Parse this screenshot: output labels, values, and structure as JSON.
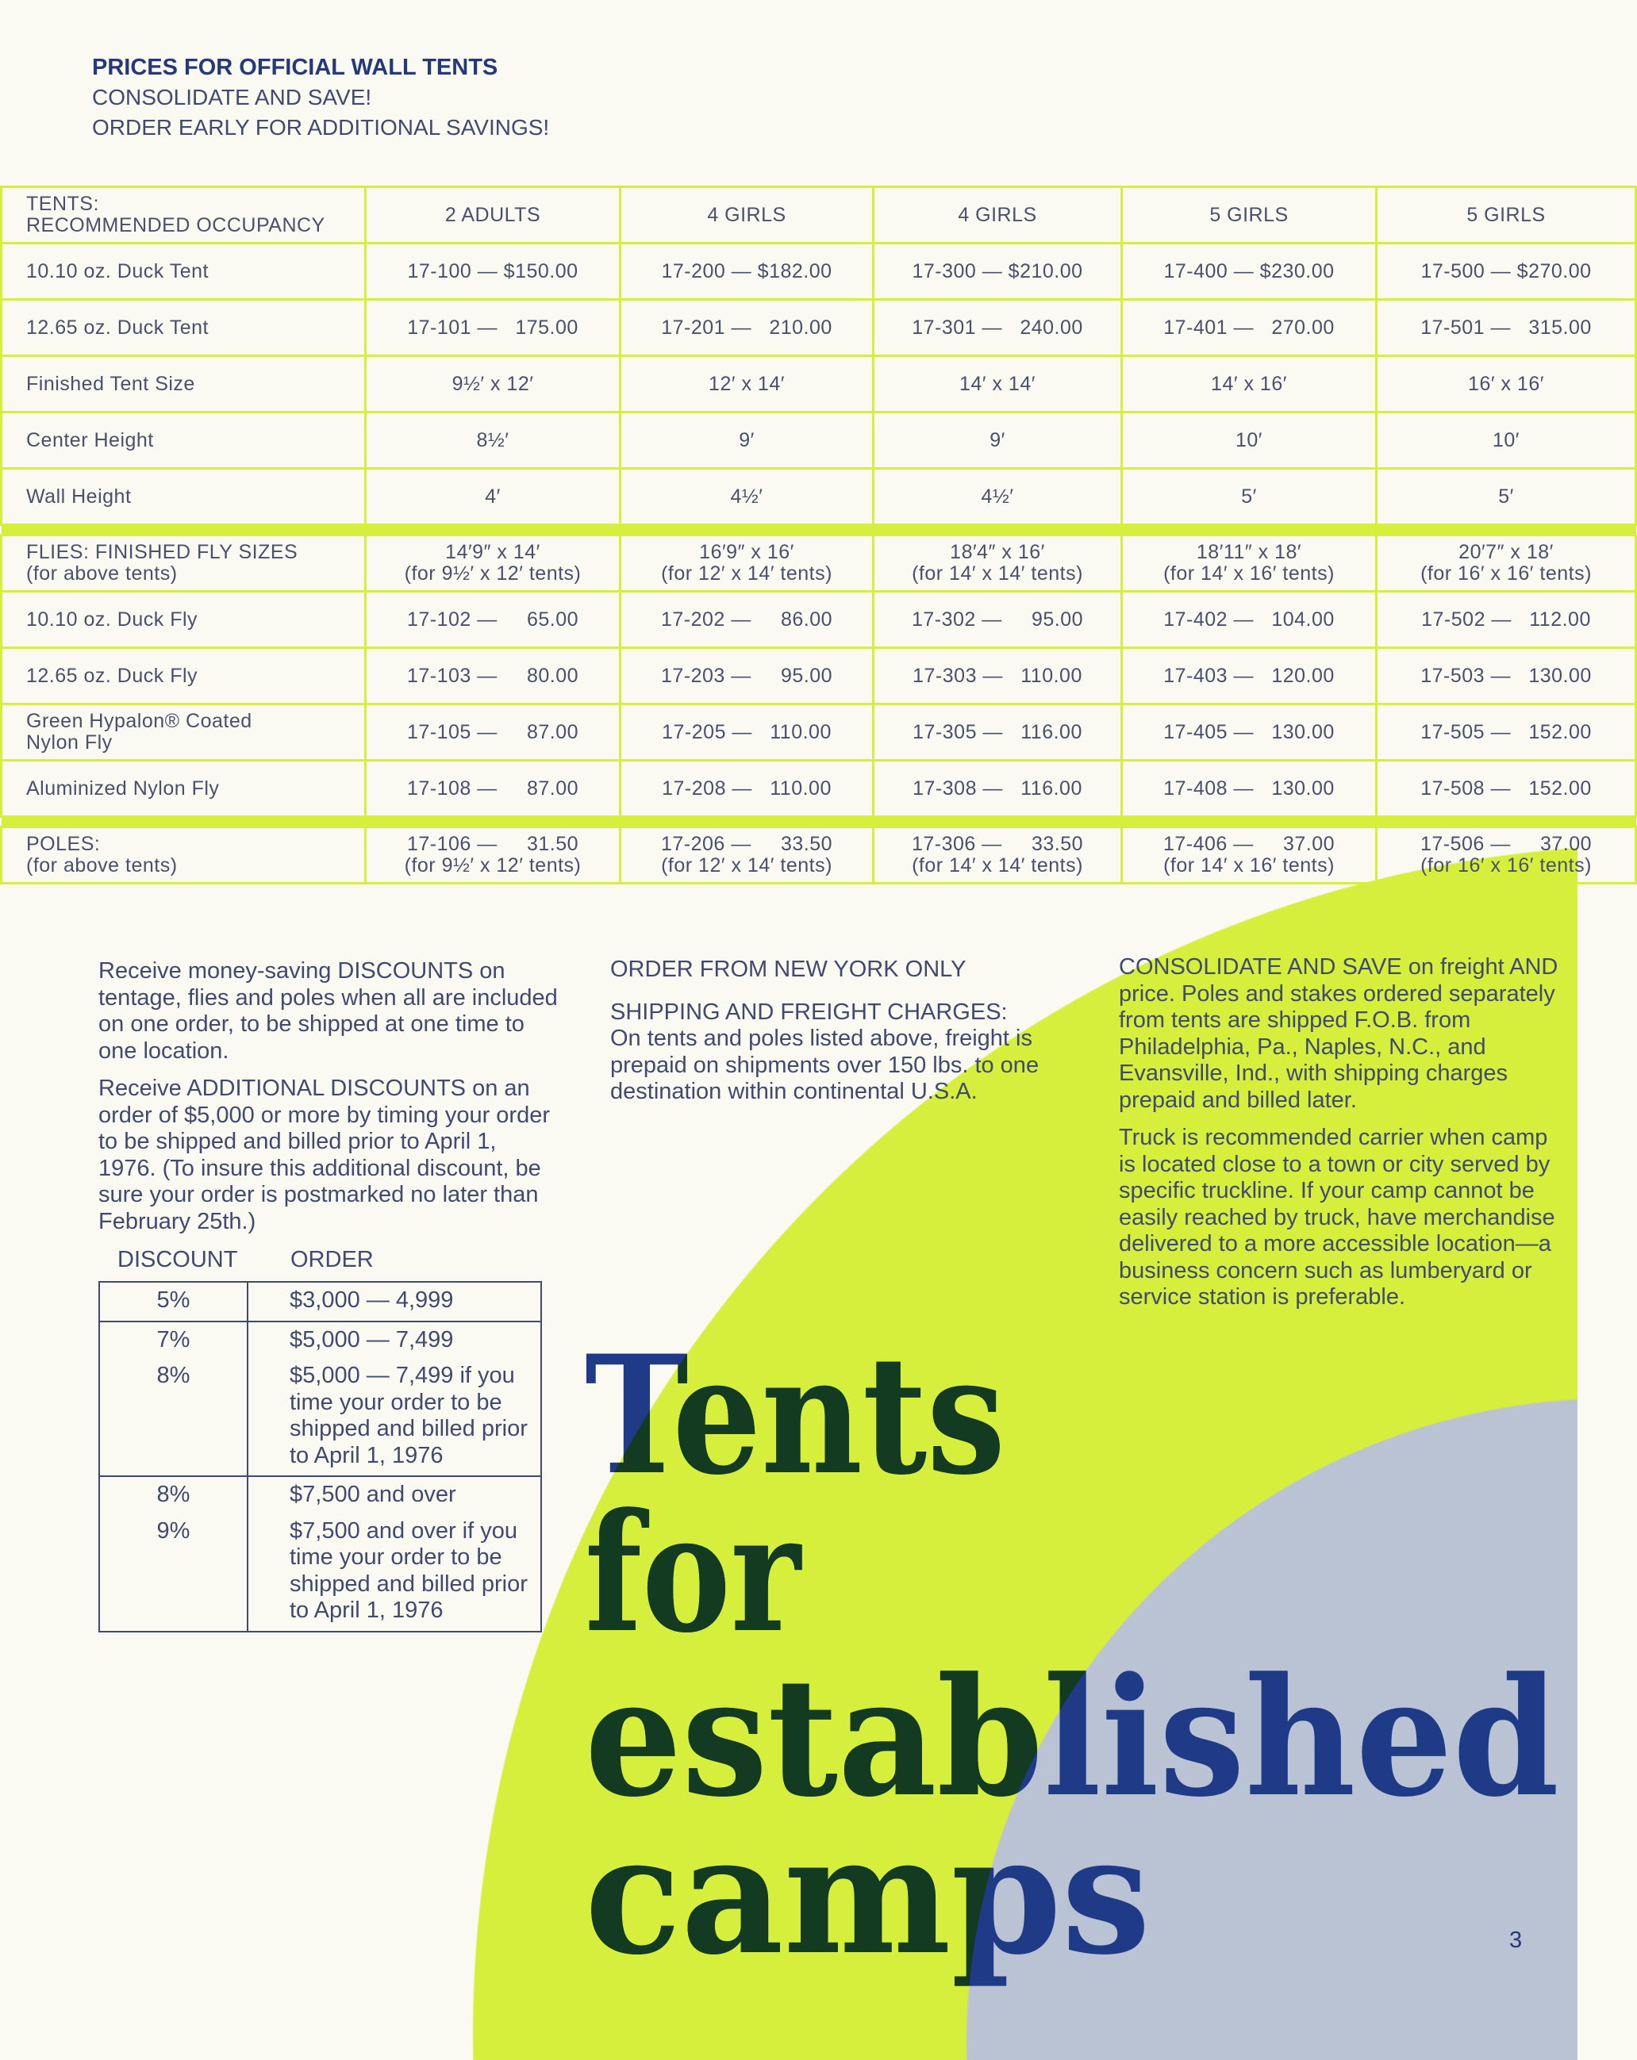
{
  "colors": {
    "lime": "#d6ee3c",
    "gray_blue": "#b9c3d3",
    "navy": "#1f3a86",
    "dark_green": "#123b22",
    "text": "#3f4a6e"
  },
  "header": {
    "title": "PRICES FOR OFFICIAL WALL TENTS",
    "line1": "CONSOLIDATE AND SAVE!",
    "line2": "ORDER EARLY FOR ADDITIONAL  SAVINGS!"
  },
  "tents_table": {
    "header": {
      "label": "TENTS:\nRECOMMENDED OCCUPANCY",
      "cols": [
        "2 ADULTS",
        "4 GIRLS",
        "4 GIRLS",
        "5 GIRLS",
        "5 GIRLS"
      ]
    },
    "rows": [
      {
        "label": "10.10 oz. Duck Tent",
        "cells": [
          "17-100 — $150.00",
          "17-200 — $182.00",
          "17-300 — $210.00",
          "17-400 — $230.00",
          "17-500 — $270.00"
        ]
      },
      {
        "label": "12.65 oz. Duck Tent",
        "cells": [
          "17-101 —   175.00",
          "17-201 —   210.00",
          "17-301 —   240.00",
          "17-401 —   270.00",
          "17-501 —   315.00"
        ]
      },
      {
        "label": "Finished Tent Size",
        "cells": [
          "9½′ x 12′",
          "12′ x 14′",
          "14′ x 14′",
          "14′ x 16′",
          "16′ x 16′"
        ]
      },
      {
        "label": "Center Height",
        "cells": [
          "8½′",
          "9′",
          "9′",
          "10′",
          "10′"
        ]
      },
      {
        "label": "Wall Height",
        "cells": [
          "4′",
          "4½′",
          "4½′",
          "5′",
          "5′"
        ]
      }
    ]
  },
  "flies_table": {
    "header": {
      "label": "FLIES: FINISHED FLY SIZES\n(for above tents)",
      "cols": [
        "14′9″ x 14′\n(for 9½′ x 12′ tents)",
        "16′9″ x 16′\n(for 12′ x 14′ tents)",
        "18′4″ x 16′\n(for 14′ x 14′ tents)",
        "18′11″ x 18′\n(for 14′ x 16′ tents)",
        "20′7″ x 18′\n(for 16′ x 16′ tents)"
      ]
    },
    "rows": [
      {
        "label": "10.10 oz. Duck Fly",
        "cells": [
          "17-102 —     65.00",
          "17-202 —     86.00",
          "17-302 —     95.00",
          "17-402 —   104.00",
          "17-502 —   112.00"
        ]
      },
      {
        "label": "12.65 oz. Duck Fly",
        "cells": [
          "17-103 —     80.00",
          "17-203 —     95.00",
          "17-303 —   110.00",
          "17-403 —   120.00",
          "17-503 —   130.00"
        ]
      },
      {
        "label": "Green Hypalon® Coated\nNylon Fly",
        "cells": [
          "17-105 —     87.00",
          "17-205 —   110.00",
          "17-305 —   116.00",
          "17-405 —   130.00",
          "17-505 —   152.00"
        ]
      },
      {
        "label": "Aluminized Nylon Fly",
        "cells": [
          "17-108 —     87.00",
          "17-208 —   110.00",
          "17-308 —   116.00",
          "17-408 —   130.00",
          "17-508 —   152.00"
        ]
      }
    ]
  },
  "poles_row": {
    "label": "POLES:\n(for above tents)",
    "cells": [
      "17-106 —     31.50\n(for 9½′ x 12′ tents)",
      "17-206 —     33.50\n(for 12′ x 14′ tents)",
      "17-306 —     33.50\n(for 14′ x 14′ tents)",
      "17-406 —     37.00\n(for 14′ x 16′ tents)",
      "17-506 —     37.00\n(for 16′ x 16′ tents)"
    ]
  },
  "left_column": {
    "p1": "Receive money-saving DISCOUNTS on tentage, flies and poles when all are included on one order, to be shipped at one time to one location.",
    "p2": "Receive ADDITIONAL DISCOUNTS on an order of $5,000 or more by timing your order to be shipped and billed prior to April 1, 1976. (To insure this additional discount, be sure your order is postmarked no later than February 25th.)"
  },
  "discount_table": {
    "headers": [
      "DISCOUNT",
      "ORDER"
    ],
    "groups": [
      [
        {
          "discount": "5%",
          "order": "$3,000 — 4,999"
        }
      ],
      [
        {
          "discount": "7%",
          "order": "$5,000 — 7,499"
        },
        {
          "discount": "8%",
          "order": "$5,000 — 7,499 if you time your order to be shipped and billed prior to April 1, 1976"
        }
      ],
      [
        {
          "discount": "8%",
          "order": "$7,500 and over"
        },
        {
          "discount": "9%",
          "order": "$7,500 and over if you time your order to be shipped and billed prior to April 1, 1976"
        }
      ]
    ]
  },
  "middle_column": {
    "p1": "ORDER FROM NEW YORK ONLY",
    "p2_title": "SHIPPING AND FREIGHT CHARGES:",
    "p2": "On tents and poles listed above, freight is prepaid on shipments over 150 lbs. to one destination within continental U.S.A."
  },
  "right_column": {
    "p1": "CONSOLIDATE AND SAVE on freight AND price. Poles and stakes ordered separately from tents are shipped F.O.B. from Philadelphia, Pa., Naples, N.C., and Evansville, Ind., with shipping charges prepaid and billed later.",
    "p2": "Truck is recommended carrier when camp is located close to a town or city served by specific truckline. If your camp cannot be easily reached by truck, have merchandise delivered to a more accessible location—a business concern such as lumberyard or service station is preferable."
  },
  "headline": {
    "line1": "Tents",
    "line2": "for",
    "line3": "established",
    "line4": "camps"
  },
  "page_number": "3"
}
